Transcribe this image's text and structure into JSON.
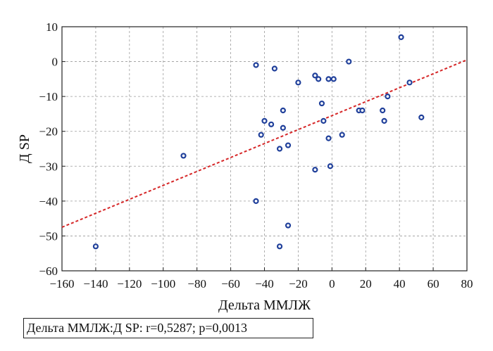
{
  "chart_data": {
    "type": "scatter",
    "xlabel": "Дельта ММЛЖ",
    "ylabel": "Д SP",
    "xlim": [
      -160,
      80
    ],
    "ylim": [
      -60,
      10
    ],
    "xticks": [
      -160,
      -140,
      -120,
      -100,
      -80,
      -60,
      -40,
      -20,
      0,
      20,
      40,
      60,
      80
    ],
    "yticks": [
      10,
      0,
      -10,
      -20,
      -30,
      -40,
      -50,
      -60
    ],
    "grid": true,
    "points": [
      {
        "x": -140,
        "y": -53
      },
      {
        "x": -88,
        "y": -27
      },
      {
        "x": -45,
        "y": -1
      },
      {
        "x": -45,
        "y": -40
      },
      {
        "x": -42,
        "y": -21
      },
      {
        "x": -40,
        "y": -17
      },
      {
        "x": -36,
        "y": -18
      },
      {
        "x": -34,
        "y": -2
      },
      {
        "x": -31,
        "y": -25
      },
      {
        "x": -31,
        "y": -53
      },
      {
        "x": -29,
        "y": -14
      },
      {
        "x": -29,
        "y": -19
      },
      {
        "x": -26,
        "y": -24
      },
      {
        "x": -26,
        "y": -47
      },
      {
        "x": -20,
        "y": -6
      },
      {
        "x": -10,
        "y": -4
      },
      {
        "x": -10,
        "y": -31
      },
      {
        "x": -8,
        "y": -5
      },
      {
        "x": -6,
        "y": -12
      },
      {
        "x": -5,
        "y": -17
      },
      {
        "x": -2,
        "y": -5
      },
      {
        "x": -2,
        "y": -22
      },
      {
        "x": -1,
        "y": -30
      },
      {
        "x": 1,
        "y": -5
      },
      {
        "x": 6,
        "y": -21
      },
      {
        "x": 10,
        "y": 0
      },
      {
        "x": 16,
        "y": -14
      },
      {
        "x": 18,
        "y": -14
      },
      {
        "x": 30,
        "y": -14
      },
      {
        "x": 31,
        "y": -17
      },
      {
        "x": 33,
        "y": -10
      },
      {
        "x": 41,
        "y": 7
      },
      {
        "x": 46,
        "y": -6
      },
      {
        "x": 53,
        "y": -16
      }
    ],
    "regression_line": {
      "x1": -160,
      "y1": -47.5,
      "x2": 80,
      "y2": 0.5
    },
    "colors": {
      "points": "#1f3f9a",
      "line": "#d62728",
      "grid": "#9a9a9a"
    },
    "stat_text": "Дельта ММЛЖ:Д SP: r=0,5287; p=0,0013"
  }
}
